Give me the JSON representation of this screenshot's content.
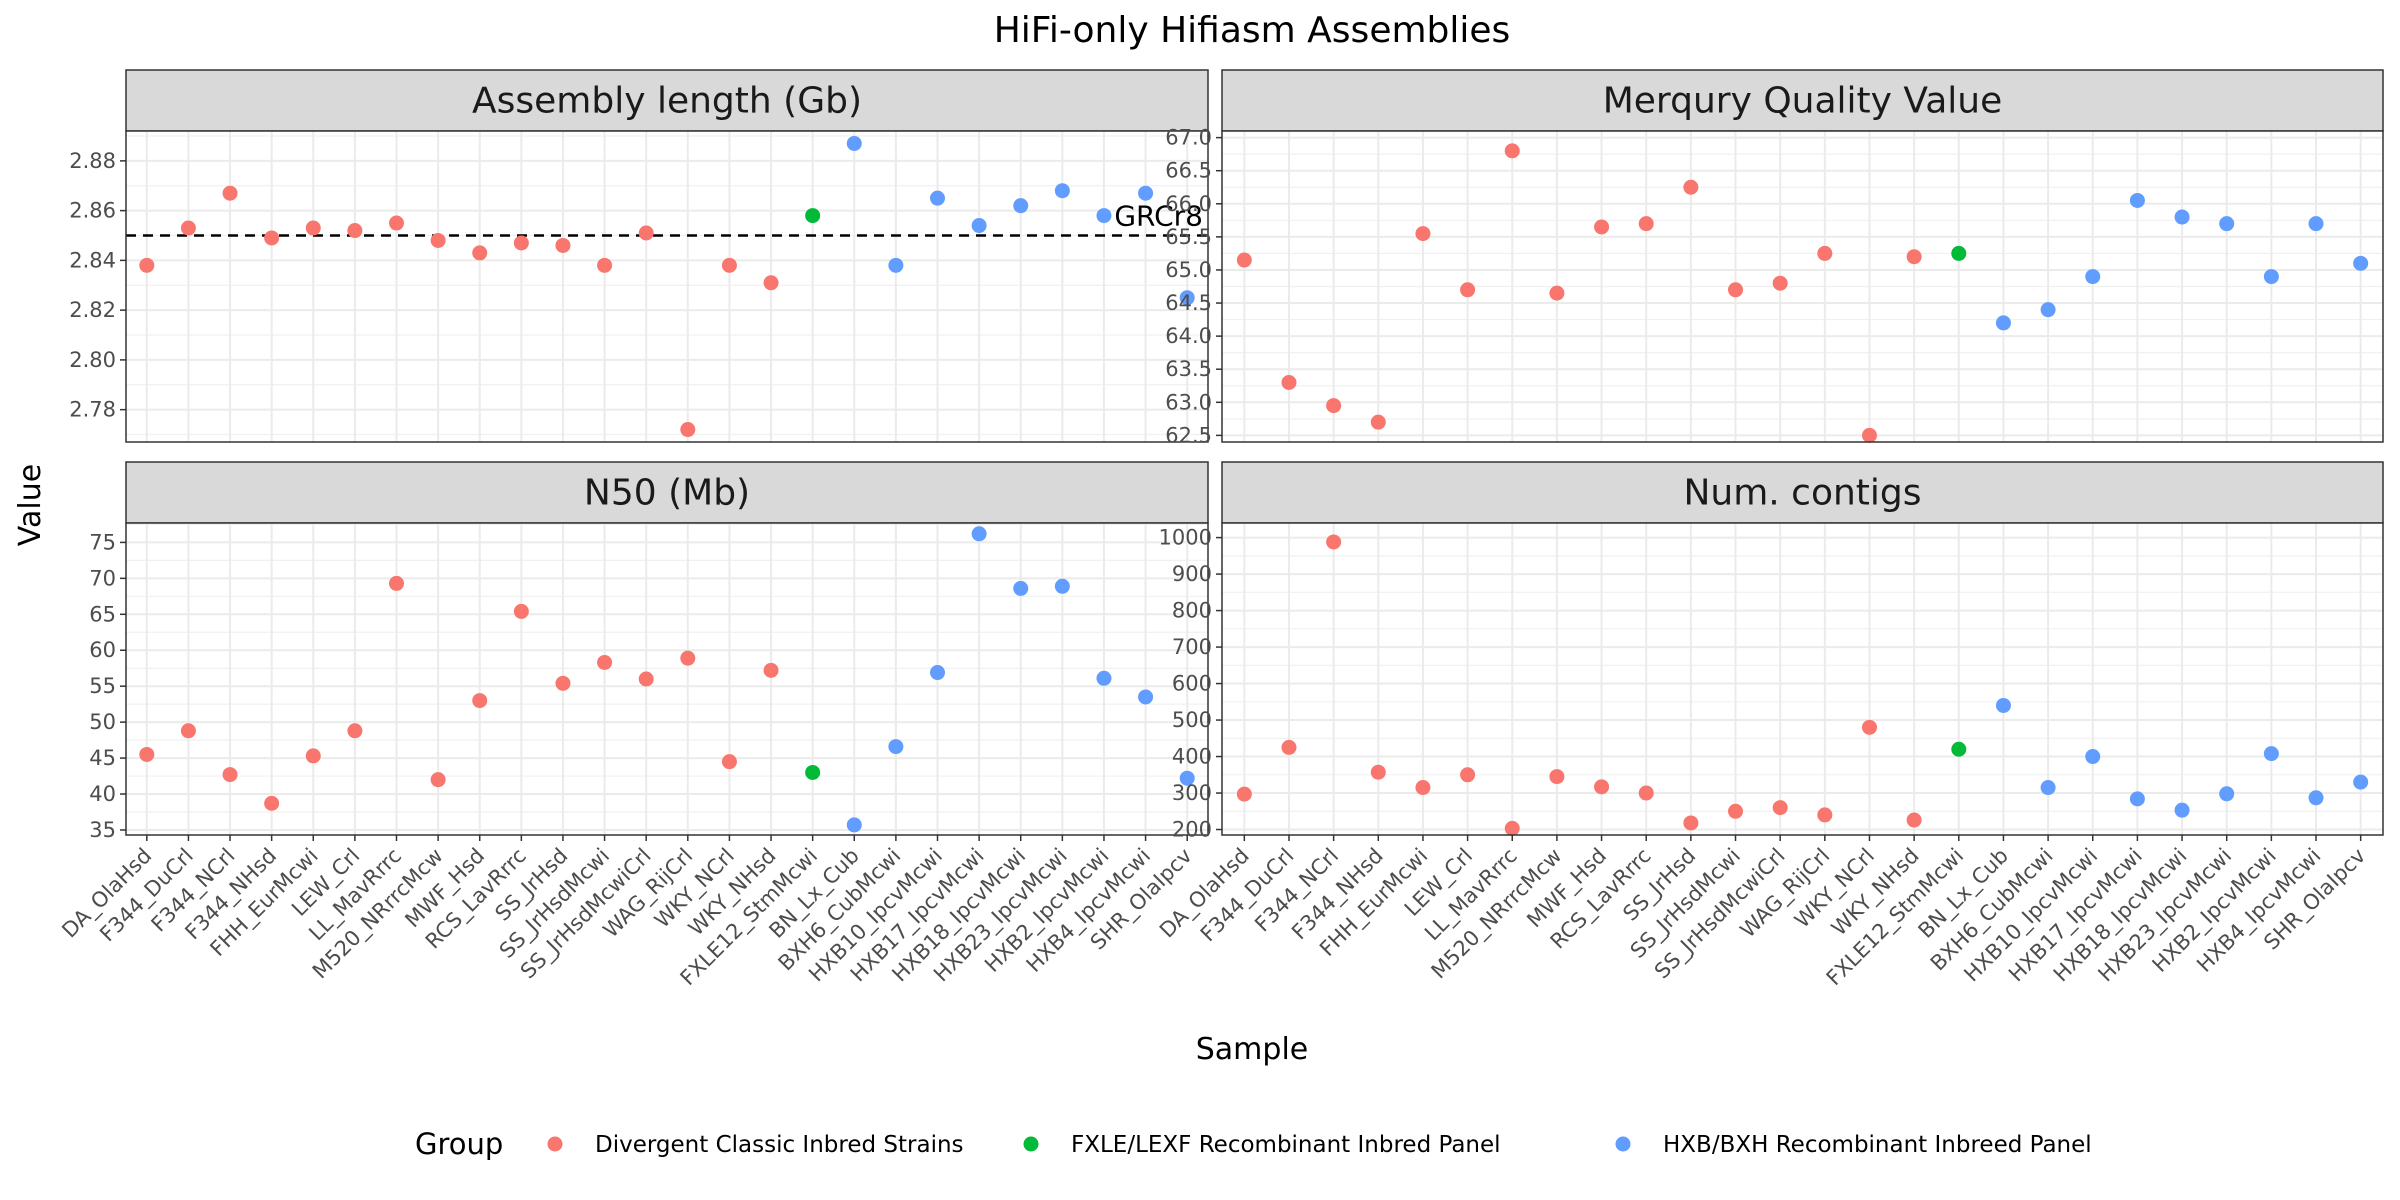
{
  "title": "HiFi-only Hifiasm Assemblies",
  "xlabel": "Sample",
  "ylabel": "Value",
  "legend": {
    "title": "Group",
    "position": "bottom",
    "items": [
      {
        "label": "Divergent Classic Inbred Strains",
        "color": "#F8766D"
      },
      {
        "label": "FXLE/LEXF Recombinant Inbred Panel",
        "color": "#00BA38"
      },
      {
        "label": "HXB/BXH Recombinant Inbreed Panel",
        "color": "#619CFF"
      }
    ]
  },
  "chart_data": {
    "type": "scatter",
    "facets_layout": "2x2",
    "grid": true,
    "categories": [
      "DA_OlaHsd",
      "F344_DuCrl",
      "F344_NCrl",
      "F344_NHsd",
      "FHH_EurMcwi",
      "LEW_Crl",
      "LL_MavRrrc",
      "M520_NRrrcMcw",
      "MWF_Hsd",
      "RCS_LavRrrc",
      "SS_JrHsd",
      "SS_JrHsdMcwi",
      "SS_JrHsdMcwiCrl",
      "WAG_RijCrl",
      "WKY_NCrl",
      "WKY_NHsd",
      "FXLE12_StmMcwi",
      "BN_Lx_Cub",
      "BXH6_CubMcwi",
      "HXB10_IpcvMcwi",
      "HXB17_IpcvMcwi",
      "HXB18_IpcvMcwi",
      "HXB23_IpcvMcwi",
      "HXB2_IpcvMcwi",
      "HXB4_IpcvMcwi",
      "SHR_OlaIpcv"
    ],
    "groups": [
      "Divergent Classic Inbred Strains",
      "Divergent Classic Inbred Strains",
      "Divergent Classic Inbred Strains",
      "Divergent Classic Inbred Strains",
      "Divergent Classic Inbred Strains",
      "Divergent Classic Inbred Strains",
      "Divergent Classic Inbred Strains",
      "Divergent Classic Inbred Strains",
      "Divergent Classic Inbred Strains",
      "Divergent Classic Inbred Strains",
      "Divergent Classic Inbred Strains",
      "Divergent Classic Inbred Strains",
      "Divergent Classic Inbred Strains",
      "Divergent Classic Inbred Strains",
      "Divergent Classic Inbred Strains",
      "Divergent Classic Inbred Strains",
      "FXLE/LEXF Recombinant Inbred Panel",
      "HXB/BXH Recombinant Inbreed Panel",
      "HXB/BXH Recombinant Inbreed Panel",
      "HXB/BXH Recombinant Inbreed Panel",
      "HXB/BXH Recombinant Inbreed Panel",
      "HXB/BXH Recombinant Inbreed Panel",
      "HXB/BXH Recombinant Inbreed Panel",
      "HXB/BXH Recombinant Inbreed Panel",
      "HXB/BXH Recombinant Inbreed Panel",
      "HXB/BXH Recombinant Inbreed Panel"
    ],
    "facets": [
      {
        "title": "Assembly length (Gb)",
        "ylim": [
          2.767,
          2.892
        ],
        "yticks": [
          "2.78",
          "2.80",
          "2.82",
          "2.84",
          "2.86",
          "2.88"
        ],
        "values": [
          2.838,
          2.853,
          2.867,
          2.849,
          2.853,
          2.852,
          2.855,
          2.848,
          2.843,
          2.847,
          2.846,
          2.838,
          2.851,
          2.772,
          2.838,
          2.831,
          2.858,
          2.887,
          2.838,
          2.865,
          2.854,
          2.862,
          2.868,
          2.858,
          2.867,
          2.825
        ],
        "reference_line": {
          "value": 2.85,
          "label": "GRCr8",
          "style": "dashed"
        }
      },
      {
        "title": "Merqury Quality Value",
        "ylim": [
          62.4,
          67.1
        ],
        "yticks": [
          "62.5",
          "63.0",
          "63.5",
          "64.0",
          "64.5",
          "65.0",
          "65.5",
          "66.0",
          "66.5",
          "67.0"
        ],
        "values": [
          65.15,
          63.3,
          62.95,
          62.7,
          65.55,
          64.7,
          66.8,
          64.65,
          65.65,
          65.7,
          66.25,
          64.7,
          64.8,
          65.25,
          62.5,
          65.2,
          65.25,
          64.2,
          64.4,
          64.9,
          66.05,
          65.8,
          65.7,
          64.9,
          65.7,
          65.1
        ]
      },
      {
        "title": "N50 (Mb)",
        "ylim": [
          34.3,
          77.7
        ],
        "yticks": [
          "35",
          "40",
          "45",
          "50",
          "55",
          "60",
          "65",
          "70",
          "75"
        ],
        "values": [
          45.5,
          48.8,
          42.7,
          38.7,
          45.3,
          48.8,
          69.3,
          42.0,
          53.0,
          65.4,
          55.4,
          58.3,
          56.0,
          58.9,
          44.5,
          57.2,
          43.0,
          35.7,
          46.6,
          56.9,
          76.2,
          68.6,
          68.9,
          56.1,
          53.5,
          42.2
        ]
      },
      {
        "title": "Num. contigs",
        "ylim": [
          185,
          1040
        ],
        "yticks": [
          "200",
          "300",
          "400",
          "500",
          "600",
          "700",
          "800",
          "900",
          "1000"
        ],
        "values": [
          297,
          425,
          988,
          357,
          315,
          350,
          203,
          345,
          317,
          300,
          218,
          250,
          260,
          240,
          480,
          226,
          420,
          540,
          315,
          400,
          284,
          253,
          298,
          408,
          287,
          330
        ]
      }
    ]
  }
}
